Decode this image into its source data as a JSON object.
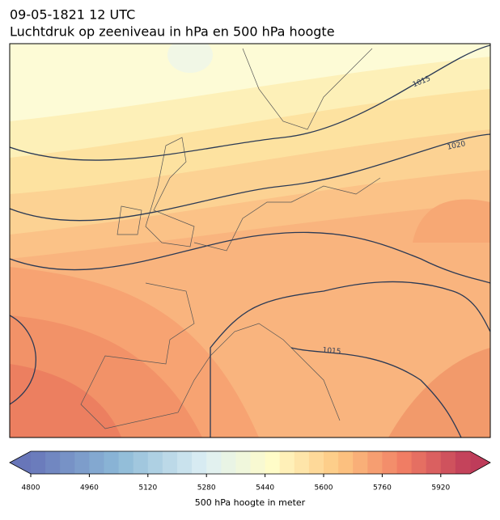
{
  "title": {
    "line1": "09-05-1821 12 UTC",
    "line2": "Luchtdruk op zeeniveau in hPa en 500 hPa hoogte"
  },
  "map": {
    "isobar_labels": [
      "1015",
      "1020",
      "1015"
    ]
  },
  "colorbar": {
    "label": "500 hPa hoogte in meter",
    "range": [
      4800,
      6000
    ],
    "step": 40,
    "ticks": [
      4800,
      4960,
      5120,
      5280,
      5440,
      5600,
      5760,
      5920
    ]
  }
}
